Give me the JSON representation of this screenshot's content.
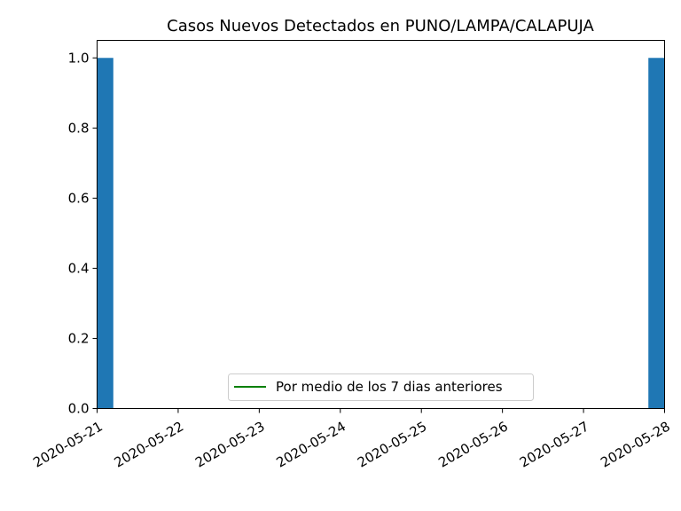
{
  "chart_data": {
    "type": "bar",
    "title": "Casos Nuevos Detectados en PUNO/LAMPA/CALAPUJA",
    "xlabel": "",
    "ylabel": "",
    "x_tick_labels": [
      "2020-05-21",
      "2020-05-22",
      "2020-05-23",
      "2020-05-24",
      "2020-05-25",
      "2020-05-26",
      "2020-05-27",
      "2020-05-28"
    ],
    "y_tick_labels": [
      "0.0",
      "0.2",
      "0.4",
      "0.6",
      "0.8",
      "1.0"
    ],
    "y_ticks": [
      0.0,
      0.2,
      0.4,
      0.6,
      0.8,
      1.0
    ],
    "ylim": [
      0,
      1.05
    ],
    "xlim": [
      "2020-05-21",
      "2020-05-28"
    ],
    "categories": [
      "2020-05-21",
      "2020-05-28"
    ],
    "values": [
      1,
      1
    ],
    "bar_color": "#1f77b4",
    "series": [
      {
        "name": "Casos Nuevos",
        "values": [
          1,
          1
        ]
      }
    ],
    "lines": [
      {
        "name": "Por medio de los 7 dias anteriores",
        "color": "#008000",
        "values": []
      }
    ],
    "legend": {
      "position": "lower-center",
      "entries": [
        "Por medio de los 7 dias anteriores"
      ]
    },
    "grid": false
  }
}
